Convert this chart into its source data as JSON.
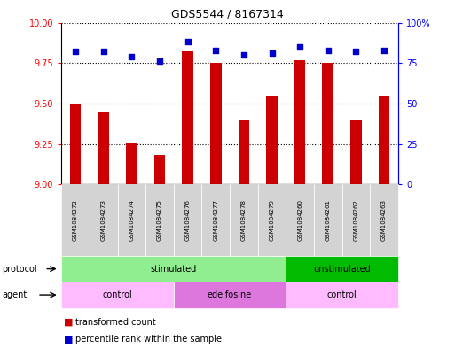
{
  "title": "GDS5544 / 8167314",
  "samples": [
    "GSM1084272",
    "GSM1084273",
    "GSM1084274",
    "GSM1084275",
    "GSM1084276",
    "GSM1084277",
    "GSM1084278",
    "GSM1084279",
    "GSM1084260",
    "GSM1084261",
    "GSM1084262",
    "GSM1084263"
  ],
  "transformed_count": [
    9.5,
    9.45,
    9.26,
    9.18,
    9.82,
    9.75,
    9.4,
    9.55,
    9.77,
    9.75,
    9.4,
    9.55
  ],
  "percentile_rank": [
    82,
    82,
    79,
    76,
    88,
    83,
    80,
    81,
    85,
    83,
    82,
    83
  ],
  "bar_color": "#cc0000",
  "dot_color": "#0000cc",
  "ylim_left": [
    9.0,
    10.0
  ],
  "ylim_right": [
    0,
    100
  ],
  "yticks_left": [
    9.0,
    9.25,
    9.5,
    9.75,
    10.0
  ],
  "yticks_right": [
    0,
    25,
    50,
    75,
    100
  ],
  "ytick_labels_right": [
    "0",
    "25",
    "50",
    "75",
    "100%"
  ],
  "protocol_groups": [
    {
      "label": "stimulated",
      "start": 0,
      "end": 8,
      "color": "#90ee90"
    },
    {
      "label": "unstimulated",
      "start": 8,
      "end": 12,
      "color": "#00bb00"
    }
  ],
  "agent_groups": [
    {
      "label": "control",
      "start": 0,
      "end": 4,
      "color": "#ffbbff"
    },
    {
      "label": "edelfosine",
      "start": 4,
      "end": 8,
      "color": "#dd77dd"
    },
    {
      "label": "control",
      "start": 8,
      "end": 12,
      "color": "#ffbbff"
    }
  ],
  "legend_bar_label": "transformed count",
  "legend_dot_label": "percentile rank within the sample",
  "protocol_label": "protocol",
  "agent_label": "agent",
  "background_color": "#ffffff"
}
